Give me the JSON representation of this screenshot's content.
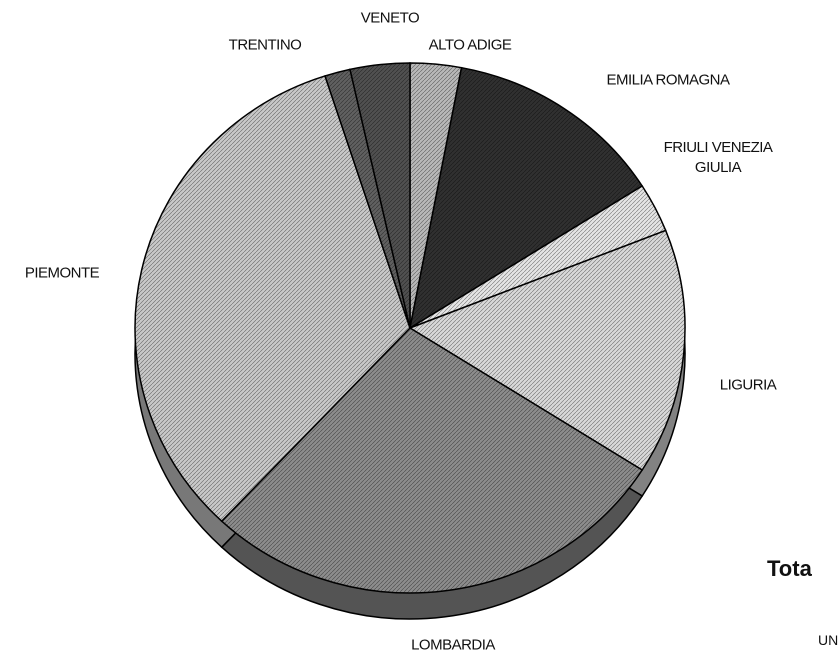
{
  "chart_data": {
    "type": "pie",
    "categories": [
      "ALTO ADIGE",
      "EMILIA ROMAGNA",
      "FRIULI VENEZIA GIULIA",
      "LIGURIA",
      "LOMBARDIA",
      "PIEMONTE",
      "TRENTINO",
      "VENETO"
    ],
    "values": [
      3,
      13,
      3,
      15,
      28,
      33,
      1.5,
      3.5
    ],
    "colors": [
      "#b8b8b8",
      "#303030",
      "#e4e4e4",
      "#d8d8d8",
      "#8c8c8c",
      "#c8c8c8",
      "#606060",
      "#505050"
    ],
    "annotations": [
      "Tota",
      "UN"
    ]
  }
}
